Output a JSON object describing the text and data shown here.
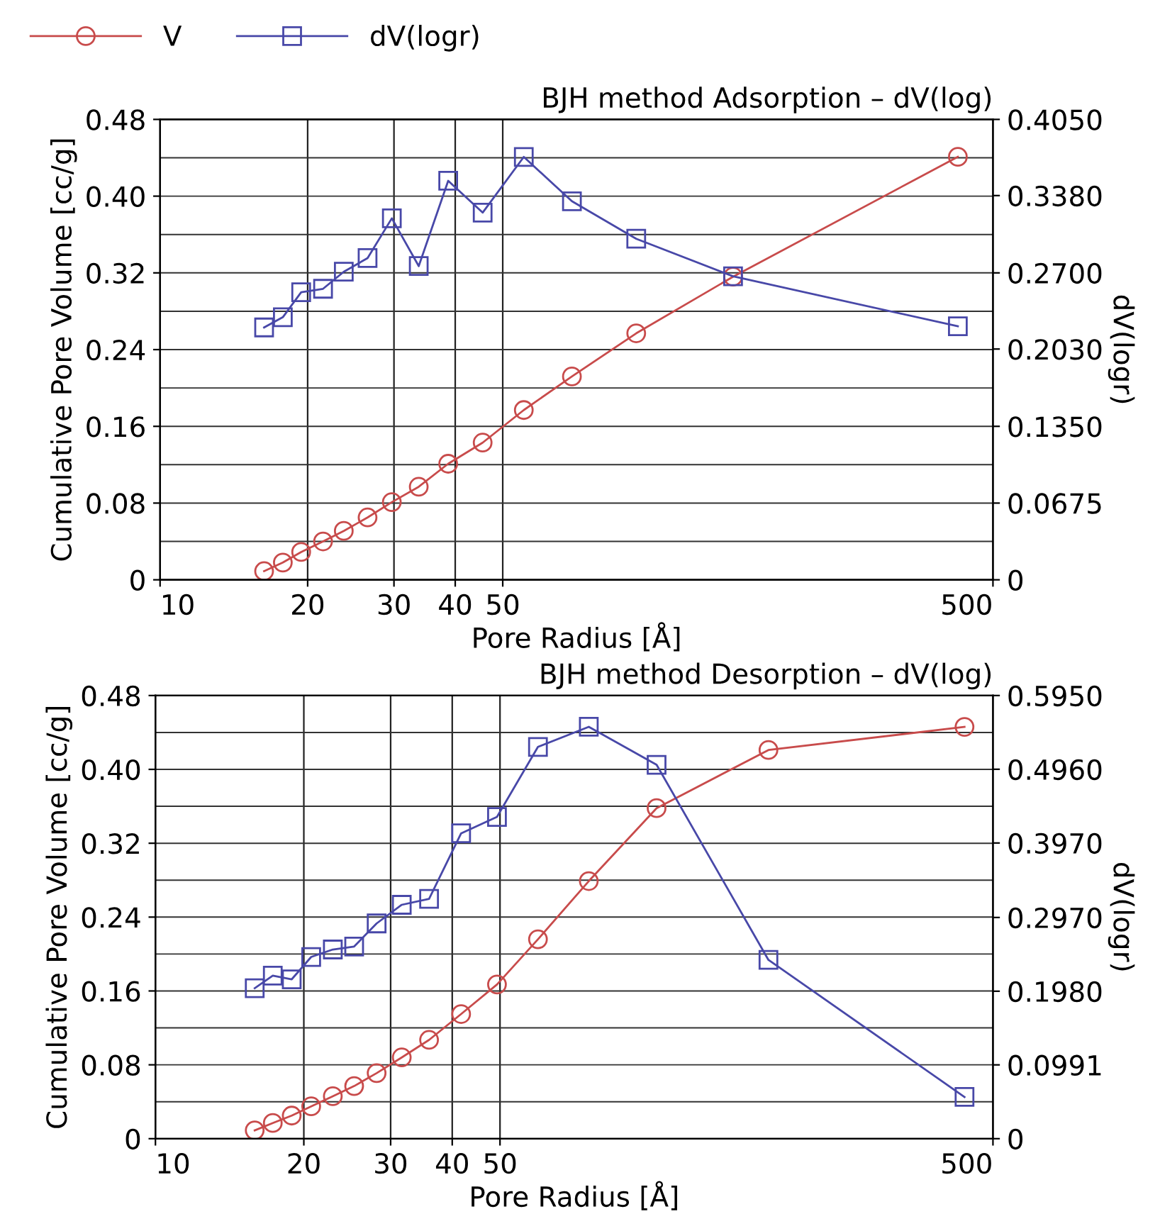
{
  "chart_data": [
    {
      "type": "line",
      "title": "BJH method Adsorption – dV(log)",
      "xlabel": "Pore Radius [Å]",
      "ylabel": "Cumulative Pore Volume [cc/g]",
      "y2label": "dV(logr)",
      "log": "x",
      "grid": true,
      "legend": "top left",
      "xlim": [
        10,
        500
      ],
      "xticks": [
        10,
        20,
        30,
        40,
        50,
        500
      ],
      "ylim": [
        0,
        0.48
      ],
      "yticks": [
        0,
        0.08,
        0.16,
        0.24,
        0.32,
        {
          "value": 0.4,
          "label": "0.40"
        },
        0.48
      ],
      "y2lim": [
        0,
        0.405
      ],
      "y2ticks": [
        0,
        0.0675,
        {
          "value": 0.135,
          "label": "0.1350"
        },
        {
          "value": 0.203,
          "label": "0.2030"
        },
        {
          "value": 0.27,
          "label": "0.2700"
        },
        {
          "value": 0.338,
          "label": "0.3380"
        },
        {
          "value": 0.405,
          "label": "0.4050"
        }
      ],
      "series": [
        {
          "name": "V",
          "color": "#c84b4b",
          "marker": "circle",
          "x": [
            16.3,
            17.8,
            19.4,
            21.5,
            23.7,
            26.5,
            29.7,
            33.7,
            38.7,
            45.5,
            55.2,
            69.2,
            93.6,
            147.5,
            424
          ],
          "values": [
            0.009,
            0.018,
            0.029,
            0.04,
            0.051,
            0.065,
            0.081,
            0.097,
            0.121,
            0.143,
            0.177,
            0.212,
            0.257,
            0.316,
            0.441
          ]
        },
        {
          "name": "dV(logr)",
          "color": "#4848a8",
          "marker": "square",
          "axis": "y2",
          "x": [
            16.3,
            17.8,
            19.4,
            21.5,
            23.7,
            26.5,
            29.7,
            33.7,
            38.7,
            45.5,
            55.2,
            69.2,
            93.6,
            147.5,
            424
          ],
          "values": [
            0.222,
            0.231,
            0.253,
            0.256,
            0.271,
            0.283,
            0.318,
            0.276,
            0.351,
            0.323,
            0.372,
            0.333,
            0.3,
            0.267,
            0.223
          ]
        }
      ]
    },
    {
      "type": "line",
      "title": "BJH method Desorption – dV(log)",
      "xlabel": "Pore Radius [Å]",
      "ylabel": "Cumulative Pore Volume [cc/g]",
      "y2label": "dV(logr)",
      "log": "x",
      "grid": true,
      "xlim": [
        10,
        500
      ],
      "xticks": [
        10,
        20,
        30,
        40,
        50,
        500
      ],
      "ylim": [
        0,
        0.48
      ],
      "yticks": [
        0,
        0.08,
        0.16,
        0.24,
        0.32,
        {
          "value": 0.4,
          "label": "0.40"
        },
        0.48
      ],
      "y2lim": [
        0,
        0.595
      ],
      "y2ticks": [
        0,
        0.0991,
        {
          "value": 0.198,
          "label": "0.1980"
        },
        {
          "value": 0.297,
          "label": "0.2970"
        },
        {
          "value": 0.397,
          "label": "0.3970"
        },
        {
          "value": 0.496,
          "label": "0.4960"
        },
        {
          "value": 0.595,
          "label": "0.5950"
        }
      ],
      "series": [
        {
          "color": "#c84b4b",
          "marker": "circle",
          "x": [
            15.9,
            17.3,
            18.9,
            20.7,
            22.9,
            25.3,
            28.1,
            31.6,
            35.9,
            41.7,
            49.3,
            59.7,
            75.7,
            103.9,
            175.2,
            437.8
          ],
          "values": [
            0.009,
            0.017,
            0.025,
            0.035,
            0.046,
            0.057,
            0.071,
            0.088,
            0.107,
            0.135,
            0.167,
            0.216,
            0.279,
            0.358,
            0.421,
            0.446
          ]
        },
        {
          "color": "#4848a8",
          "marker": "square",
          "axis": "y2",
          "x": [
            15.9,
            17.3,
            18.9,
            20.7,
            22.9,
            25.3,
            28.1,
            31.6,
            35.9,
            41.7,
            49.3,
            59.7,
            75.7,
            103.9,
            175.2,
            437.8
          ],
          "values": [
            0.202,
            0.219,
            0.214,
            0.244,
            0.254,
            0.258,
            0.289,
            0.314,
            0.322,
            0.41,
            0.432,
            0.526,
            0.553,
            0.502,
            0.24,
            0.056
          ]
        }
      ]
    }
  ]
}
